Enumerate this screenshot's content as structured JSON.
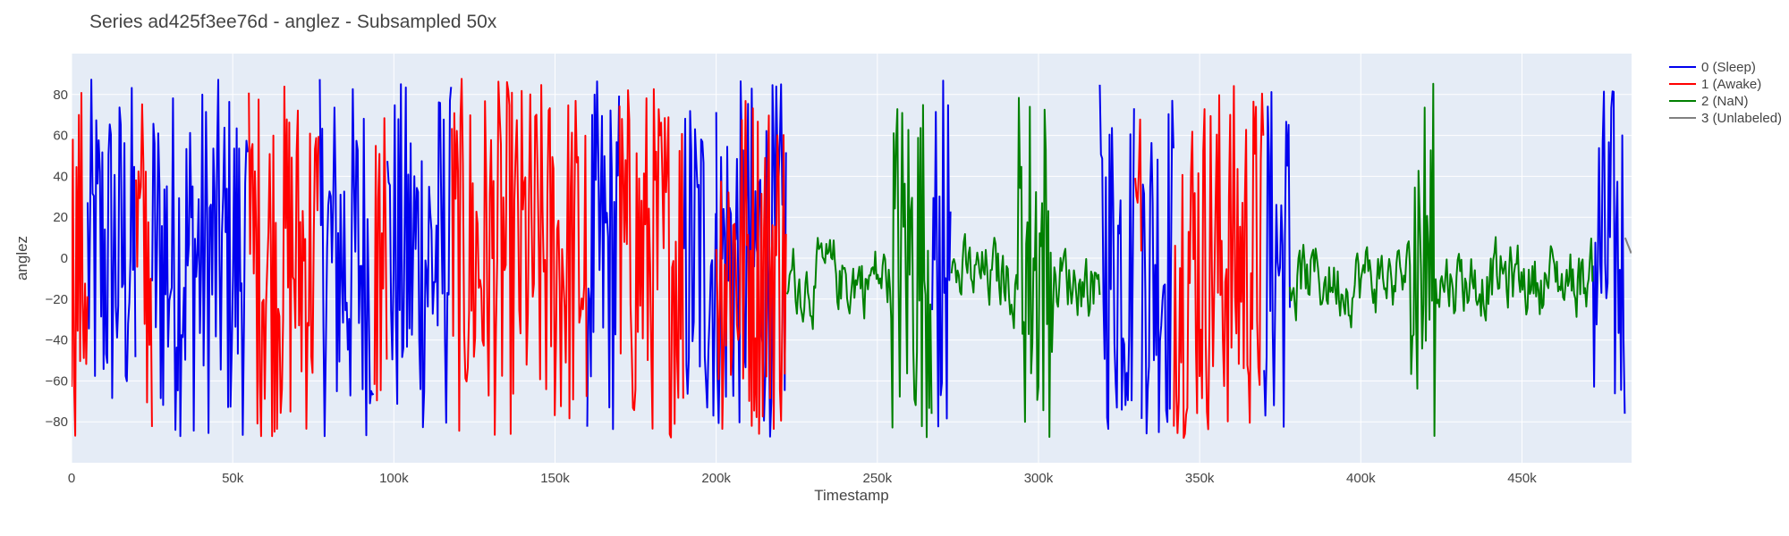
{
  "chart_data": {
    "type": "line",
    "title": "Series ad425f3ee76d - anglez - Subsampled 50x",
    "xlabel": "Timestamp",
    "ylabel": "anglez",
    "xlim": [
      0,
      484000
    ],
    "ylim": [
      -100,
      100
    ],
    "x_ticks": [
      0,
      50000,
      100000,
      150000,
      200000,
      250000,
      300000,
      350000,
      400000,
      450000
    ],
    "x_tick_labels": [
      "0",
      "50k",
      "100k",
      "150k",
      "200k",
      "250k",
      "300k",
      "350k",
      "400k",
      "450k"
    ],
    "y_ticks": [
      -80,
      -60,
      -40,
      -20,
      0,
      20,
      40,
      60,
      80
    ],
    "y_tick_labels": [
      "−80",
      "−60",
      "−40",
      "−20",
      "0",
      "20",
      "40",
      "60",
      "80"
    ],
    "grid": true,
    "legend": "right",
    "series": [
      {
        "name": "0 (Sleep)",
        "color": "#0000ee",
        "segments": [
          [
            5000,
            20000
          ],
          [
            25000,
            55000
          ],
          [
            77000,
            94000
          ],
          [
            98000,
            118000
          ],
          [
            160000,
            170000
          ],
          [
            190000,
            200000
          ],
          [
            200000,
            222000
          ],
          [
            267000,
            273000
          ],
          [
            319000,
            330000
          ],
          [
            332000,
            342000
          ],
          [
            370000,
            378000
          ],
          [
            472000,
            482000
          ]
        ]
      },
      {
        "name": "1 (Awake)",
        "color": "#ff0000",
        "segments": [
          [
            0,
            5000
          ],
          [
            20000,
            25000
          ],
          [
            55000,
            77000
          ],
          [
            94000,
            98000
          ],
          [
            118000,
            160000
          ],
          [
            170000,
            190000
          ],
          [
            200000,
            222000
          ],
          [
            330000,
            332000
          ],
          [
            342000,
            370000
          ]
        ]
      },
      {
        "name": "2 (NaN)",
        "color": "#008000",
        "segments": [
          [
            222000,
            267000
          ],
          [
            273000,
            319000
          ],
          [
            378000,
            472000
          ]
        ]
      },
      {
        "name": "3 (Unlabeled)",
        "color": "#808080",
        "segments": [
          [
            482000,
            484000
          ]
        ]
      }
    ]
  }
}
